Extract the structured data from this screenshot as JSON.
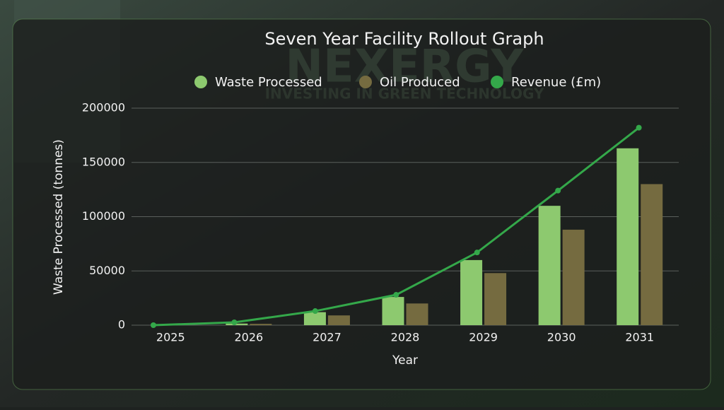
{
  "background": {
    "logo": "NEXERGY",
    "tagline": "INVESTING IN GREEN TECHNOLOGY"
  },
  "chart_data": {
    "type": "bar",
    "title": "Seven Year Facility Rollout Graph",
    "x_label": "Year",
    "y_label": "Waste Processed (tonnes)",
    "categories": [
      "2025",
      "2026",
      "2027",
      "2028",
      "2029",
      "2030",
      "2031"
    ],
    "series": [
      {
        "name": "Waste Processed",
        "type": "bar",
        "color": "#8dc96f",
        "values": [
          0,
          1500,
          12000,
          26000,
          60000,
          110000,
          163000
        ]
      },
      {
        "name": "Oil Produced",
        "type": "bar",
        "color": "#756b40",
        "values": [
          0,
          1200,
          9000,
          20000,
          48000,
          88000,
          130000
        ]
      },
      {
        "name": "Revenue (£m)",
        "type": "line",
        "color": "#34a84a",
        "values": [
          0,
          2600,
          13000,
          28000,
          67000,
          124000,
          182000
        ]
      }
    ],
    "ylim": [
      0,
      200000
    ],
    "yticks": [
      0,
      50000,
      100000,
      150000,
      200000
    ],
    "grid": true
  }
}
